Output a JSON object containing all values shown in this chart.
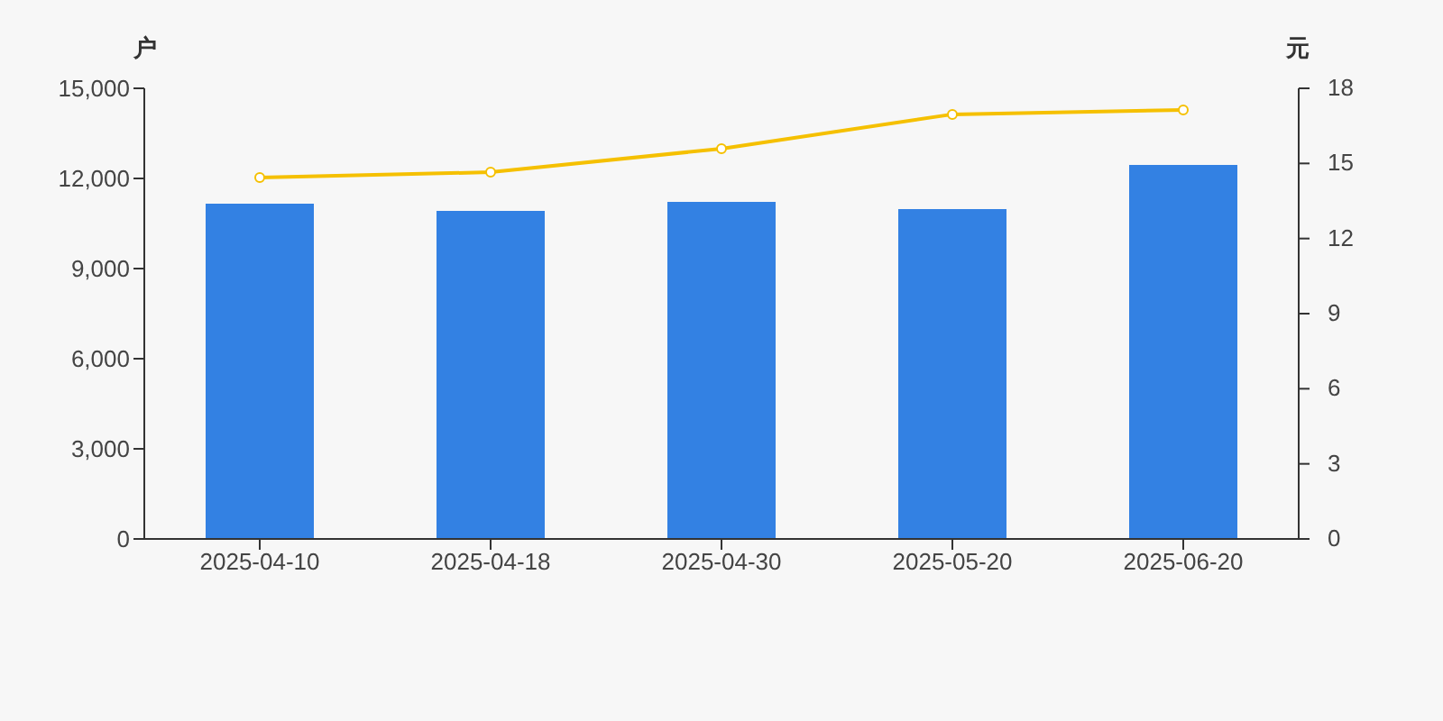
{
  "chart_data": {
    "type": "bar",
    "ylabel": "户",
    "y2label": "元",
    "categories": [
      "2025-04-10",
      "2025-04-18",
      "2025-04-30",
      "2025-05-20",
      "2025-06-20"
    ],
    "series": [
      {
        "color": "#3381e3",
        "values": [
          11160,
          10920,
          11220,
          10980,
          12450
        ]
      },
      {
        "type": "line",
        "axis": "y2",
        "color": "#f5c000",
        "marker": "circle",
        "values": [
          14.44,
          14.65,
          15.59,
          16.96,
          17.14
        ]
      }
    ],
    "ylim": [
      0,
      15000
    ],
    "yticks": [
      {
        "value": 0,
        "label": "0"
      },
      {
        "value": 3000,
        "label": "3,000"
      },
      {
        "value": 6000,
        "label": "6,000"
      },
      {
        "value": 9000,
        "label": "9,000"
      },
      {
        "value": 12000,
        "label": "12,000"
      },
      {
        "value": 15000,
        "label": "15,000"
      }
    ],
    "y2lim": [
      0,
      18
    ],
    "y2ticks": [
      0,
      3,
      6,
      9,
      12,
      15,
      18
    ],
    "grid": false,
    "legend": false
  }
}
